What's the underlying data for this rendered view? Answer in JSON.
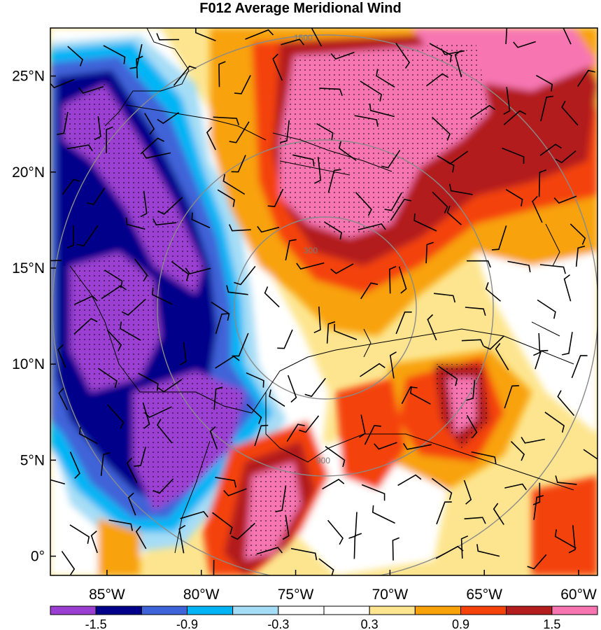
{
  "title": "F012 Average Meridional Wind",
  "map": {
    "lon_range": [
      -88,
      -59
    ],
    "lat_range": [
      -1,
      27.5
    ],
    "lon_ticks": [
      {
        "value": -85,
        "label": "85°W"
      },
      {
        "value": -80,
        "label": "80°W"
      },
      {
        "value": -75,
        "label": "75°W"
      },
      {
        "value": -70,
        "label": "70°W"
      },
      {
        "value": -65,
        "label": "65°W"
      },
      {
        "value": -60,
        "label": "60°W"
      }
    ],
    "lat_ticks": [
      {
        "value": 0,
        "label": "0°"
      },
      {
        "value": 5,
        "label": "5°N"
      },
      {
        "value": 10,
        "label": "10°N"
      },
      {
        "value": 15,
        "label": "15°N"
      },
      {
        "value": 20,
        "label": "20°N"
      },
      {
        "value": 25,
        "label": "25°N"
      }
    ],
    "range_rings": [
      {
        "label": "300"
      },
      {
        "label": "900"
      },
      {
        "label": "1500"
      }
    ]
  },
  "colorbar": {
    "colors": [
      "#9b3fd3",
      "#00008b",
      "#3f63d8",
      "#00b5f5",
      "#a6ddf6",
      "#ffffff",
      "#ffffff",
      "#fde58f",
      "#f8a20a",
      "#f4420a",
      "#b31d1d",
      "#f776b2"
    ],
    "labels": [
      "-1.5",
      "-0.9",
      "-0.3",
      "0.3",
      "0.9",
      "1.5"
    ]
  }
}
